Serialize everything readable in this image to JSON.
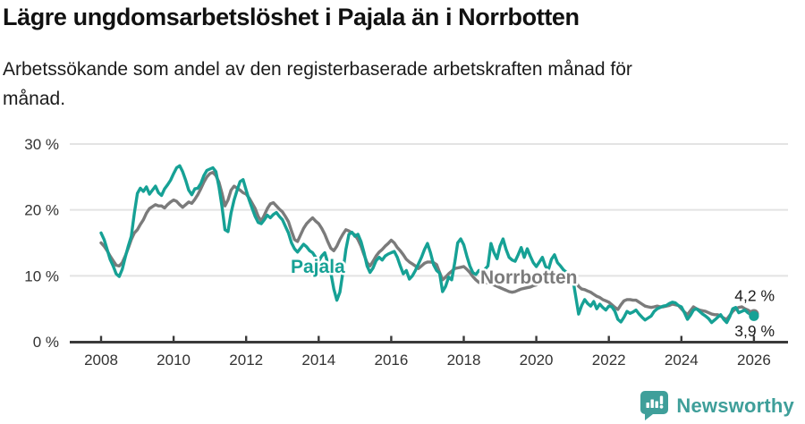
{
  "header": {
    "title": "Lägre ungdomsarbetslöshet i Pajala än i Norrbotten",
    "subtitle": "Arbetssökande som andel av den registerbaserade arbetskraften månad för\nmånad."
  },
  "footer": {
    "brand": "Newsworthy"
  },
  "colors": {
    "pajala": "#16a195",
    "norrbotten": "#7b7b7b",
    "grid": "#e3e3e3",
    "axis": "#3a3a3a",
    "tick_text": "#333333",
    "annotation_text": "#1a1a1a",
    "logo": "#3f9f9a"
  },
  "chart_data": {
    "type": "line",
    "title": "Lägre ungdomsarbetslöshet i Pajala än i Norrbotten",
    "subtitle": "Arbetssökande som andel av den registerbaserade arbetskraften månad för månad.",
    "unit": "%",
    "x_start_year": 2008,
    "points_per_year": 12,
    "ylim": [
      0,
      30
    ],
    "grid": true,
    "y_ticks": [
      {
        "value": 30,
        "label": "30 %"
      },
      {
        "value": 20,
        "label": "20 %"
      },
      {
        "value": 10,
        "label": "10 %"
      },
      {
        "value": 0,
        "label": "0 %"
      }
    ],
    "x_ticks": [
      {
        "year": 2008,
        "label": "2008"
      },
      {
        "year": 2010,
        "label": "2010"
      },
      {
        "year": 2012,
        "label": "2012"
      },
      {
        "year": 2014,
        "label": "2014"
      },
      {
        "year": 2016,
        "label": "2016"
      },
      {
        "year": 2018,
        "label": "2018"
      },
      {
        "year": 2020,
        "label": "2020"
      },
      {
        "year": 2022,
        "label": "2022"
      },
      {
        "year": 2024,
        "label": "2024"
      },
      {
        "year": 2026,
        "label": "2026"
      }
    ],
    "series": [
      {
        "name": "Norrbotten",
        "color": "#7b7b7b",
        "inline_label": {
          "text": "Norrbotten",
          "x": 537,
          "y": 317
        },
        "end_label": "4,2 %",
        "end_value": 4.2,
        "values": [
          15.0,
          14.5,
          13.8,
          13.0,
          12.3,
          11.6,
          11.5,
          12.0,
          13.0,
          14.2,
          15.5,
          16.5,
          17.0,
          17.8,
          18.5,
          19.5,
          20.2,
          20.5,
          20.8,
          20.6,
          20.6,
          20.3,
          20.8,
          21.2,
          21.5,
          21.3,
          20.8,
          20.4,
          20.8,
          21.2,
          21.0,
          21.6,
          22.3,
          23.2,
          24.2,
          25.0,
          25.5,
          25.7,
          25.2,
          24.2,
          22.5,
          20.6,
          21.5,
          23.0,
          23.6,
          23.3,
          23.0,
          22.6,
          22.4,
          21.8,
          21.0,
          20.2,
          19.0,
          18.3,
          19.2,
          20.2,
          20.9,
          21.1,
          20.6,
          20.1,
          19.7,
          19.0,
          18.2,
          16.8,
          15.5,
          15.2,
          16.2,
          17.2,
          17.9,
          18.4,
          18.8,
          18.3,
          17.9,
          17.2,
          16.3,
          15.2,
          14.2,
          13.8,
          14.5,
          15.5,
          16.3,
          17.0,
          16.8,
          16.5,
          16.2,
          15.5,
          14.5,
          13.2,
          12.0,
          11.5,
          12.2,
          13.0,
          13.6,
          14.0,
          14.5,
          14.9,
          15.4,
          15.0,
          14.3,
          13.8,
          13.2,
          12.5,
          12.1,
          11.8,
          11.5,
          11.1,
          11.5,
          11.9,
          12.1,
          12.1,
          12.0,
          11.7,
          10.5,
          9.4,
          9.8,
          10.3,
          10.7,
          11.1,
          11.2,
          11.3,
          11.4,
          11.0,
          10.5,
          9.9,
          9.4,
          9.0,
          8.9,
          9.0,
          8.9,
          8.8,
          8.6,
          8.4,
          8.2,
          8.0,
          7.8,
          7.6,
          7.5,
          7.6,
          7.8,
          8.0,
          8.1,
          8.2,
          8.3,
          8.5,
          8.6,
          8.9,
          9.2,
          9.6,
          9.9,
          10.1,
          10.2,
          10.3,
          10.4,
          10.5,
          10.5,
          10.3,
          10.0,
          9.2,
          8.4,
          8.0,
          7.9,
          7.7,
          7.5,
          7.2,
          6.9,
          6.7,
          6.4,
          6.2,
          6.0,
          5.6,
          5.2,
          4.9,
          5.6,
          6.2,
          6.4,
          6.4,
          6.3,
          6.3,
          6.0,
          5.7,
          5.4,
          5.3,
          5.2,
          5.3,
          5.4,
          5.3,
          5.3,
          5.4,
          5.5,
          5.7,
          5.6,
          5.5,
          5.0,
          4.5,
          4.1,
          4.7,
          5.3,
          5.0,
          4.8,
          4.7,
          4.6,
          4.4,
          4.2,
          4.1,
          4.1,
          3.9,
          3.6,
          3.4,
          4.0,
          4.6,
          5.0,
          5.2,
          5.3,
          5.0,
          4.8,
          4.5,
          4.2
        ]
      },
      {
        "name": "Pajala",
        "color": "#16a195",
        "inline_label": {
          "text": "Pajala",
          "x": 325,
          "y": 305
        },
        "end_label": "3,9 %",
        "end_value": 3.9,
        "values": [
          16.5,
          15.5,
          14.0,
          12.5,
          11.5,
          10.3,
          9.9,
          11.0,
          12.8,
          14.5,
          16.0,
          19.5,
          22.5,
          23.3,
          22.8,
          23.5,
          22.4,
          23.0,
          23.6,
          22.6,
          22.2,
          23.2,
          23.8,
          24.5,
          25.5,
          26.4,
          26.7,
          25.8,
          24.5,
          23.0,
          22.3,
          23.2,
          23.3,
          24.0,
          25.2,
          26.0,
          26.2,
          26.4,
          25.8,
          23.5,
          20.5,
          17.0,
          16.7,
          19.5,
          21.5,
          23.0,
          24.3,
          24.6,
          23.0,
          21.5,
          20.2,
          19.0,
          18.1,
          17.9,
          18.5,
          19.2,
          18.8,
          19.3,
          19.6,
          19.0,
          18.5,
          17.5,
          16.5,
          15.0,
          14.1,
          13.6,
          14.2,
          14.8,
          14.4,
          13.8,
          13.5,
          12.8,
          12.2,
          13.0,
          13.5,
          12.0,
          10.5,
          8.0,
          6.3,
          7.5,
          10.5,
          14.0,
          16.3,
          16.6,
          16.0,
          16.3,
          15.2,
          13.5,
          11.5,
          10.5,
          11.2,
          12.3,
          12.8,
          12.4,
          13.0,
          13.3,
          13.5,
          13.7,
          12.8,
          11.5,
          10.3,
          10.8,
          9.5,
          10.0,
          10.8,
          11.8,
          12.8,
          14.0,
          14.9,
          13.5,
          11.7,
          10.8,
          10.4,
          7.6,
          8.4,
          9.8,
          9.4,
          12.0,
          15.0,
          15.6,
          14.7,
          13.0,
          11.5,
          10.5,
          10.2,
          10.8,
          10.5,
          11.0,
          11.5,
          14.9,
          13.5,
          12.6,
          14.5,
          15.6,
          14.0,
          12.8,
          12.4,
          12.2,
          13.2,
          14.3,
          12.8,
          14.1,
          13.0,
          12.0,
          11.4,
          12.1,
          12.8,
          11.5,
          10.9,
          12.5,
          13.2,
          12.0,
          11.5,
          10.9,
          10.5,
          10.2,
          9.8,
          7.0,
          4.2,
          5.5,
          6.4,
          5.8,
          5.4,
          6.1,
          5.0,
          5.7,
          5.2,
          4.8,
          5.4,
          5.3,
          4.6,
          3.4,
          3.0,
          3.7,
          4.6,
          4.3,
          4.5,
          4.8,
          4.2,
          3.7,
          3.3,
          3.6,
          3.9,
          4.6,
          5.0,
          5.2,
          5.4,
          5.5,
          5.8,
          6.0,
          5.9,
          5.5,
          5.3,
          4.4,
          3.4,
          4.0,
          4.8,
          5.0,
          4.6,
          4.2,
          3.9,
          3.5,
          2.9,
          3.3,
          3.7,
          4.1,
          3.4,
          2.9,
          3.8,
          5.0,
          5.2,
          4.4,
          4.6,
          4.8,
          4.4,
          4.1,
          3.9
        ]
      }
    ]
  }
}
